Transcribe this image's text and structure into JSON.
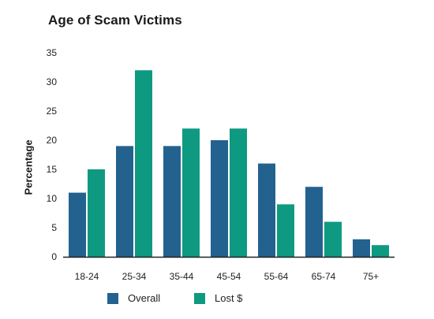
{
  "chart_data": {
    "type": "bar",
    "title": "Age of Scam Victims",
    "ylabel": "Percentage",
    "xlabel": "",
    "categories": [
      "18-24",
      "25-34",
      "35-44",
      "45-54",
      "55-64",
      "65-74",
      "75+"
    ],
    "series": [
      {
        "name": "Overall",
        "color": "#23628f",
        "values": [
          11,
          19,
          19,
          20,
          16,
          12,
          3
        ]
      },
      {
        "name": "Lost $",
        "color": "#0e9a81",
        "values": [
          15,
          32,
          22,
          22,
          9,
          6,
          2
        ]
      }
    ],
    "ylim": [
      0,
      35
    ],
    "yticks": [
      0,
      5,
      10,
      15,
      20,
      25,
      30,
      35
    ],
    "grid": false,
    "legend_position": "bottom"
  }
}
